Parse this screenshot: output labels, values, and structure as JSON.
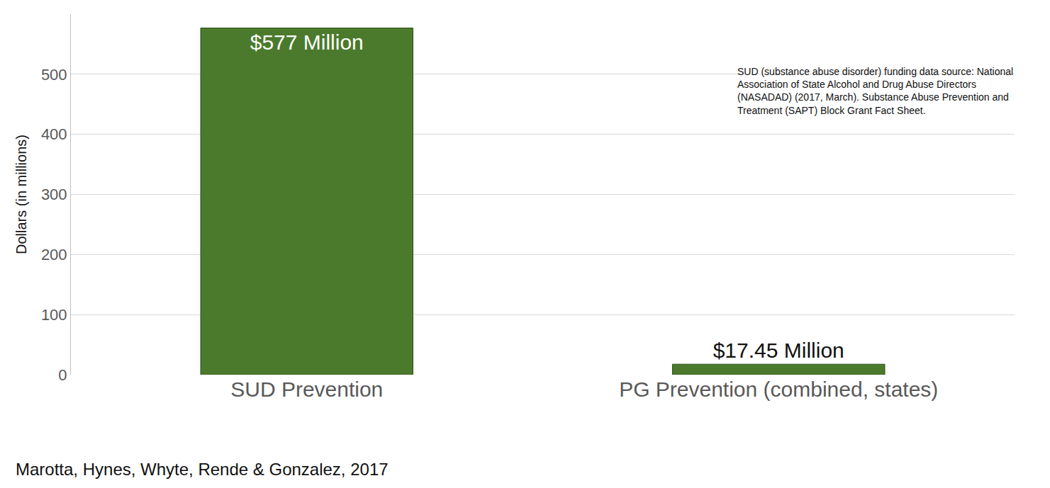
{
  "chart_data": {
    "type": "bar",
    "categories": [
      "SUD Prevention",
      "PG Prevention (combined, states)"
    ],
    "values": [
      577,
      17.45
    ],
    "value_labels": [
      "$577 Million",
      "$17.45 Million"
    ],
    "data_labels": true,
    "color": "#4b7a2c",
    "y_label": "Dollars (in millions)",
    "ylim": [
      0,
      600
    ],
    "yticks": [
      0,
      100,
      200,
      300,
      400,
      500
    ],
    "grid": true,
    "annotations": [
      "SUD (substance abuse disorder) funding data source: National Association of State Alcohol and Drug Abuse Directors (NASADAD) (2017, March). Substance Abuse Prevention and Treatment (SAPT) Block Grant Fact Sheet.",
      "Marotta, Hynes, Whyte, Rende & Gonzalez, 2017"
    ]
  }
}
